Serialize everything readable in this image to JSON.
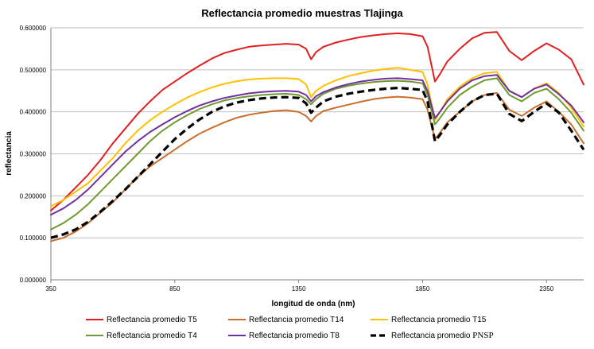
{
  "chart_data": {
    "type": "line",
    "title": "Reflectancia promedio muestras Tlajinga",
    "xlabel": "longitud de onda (nm)",
    "ylabel": "reflectancia",
    "xlim": [
      350,
      2500
    ],
    "ylim": [
      0,
      0.6
    ],
    "x_ticks": [
      350,
      850,
      1350,
      1850,
      2350
    ],
    "x_tick_labels": [
      "350",
      "850",
      "1350",
      "1850",
      "2350"
    ],
    "y_ticks": [
      0,
      0.1,
      0.2,
      0.3,
      0.4,
      0.5,
      0.6
    ],
    "y_tick_labels": [
      "0.000000",
      "0.100000",
      "0.200000",
      "0.300000",
      "0.400000",
      "0.500000",
      "0.600000"
    ],
    "grid": "horizontal",
    "legend_position": "bottom",
    "x": [
      350,
      400,
      450,
      500,
      550,
      600,
      650,
      700,
      750,
      800,
      850,
      900,
      950,
      1000,
      1050,
      1100,
      1150,
      1200,
      1250,
      1300,
      1350,
      1380,
      1400,
      1420,
      1450,
      1500,
      1550,
      1600,
      1650,
      1700,
      1750,
      1800,
      1850,
      1870,
      1900,
      1920,
      1950,
      2000,
      2050,
      2100,
      2150,
      2200,
      2250,
      2300,
      2350,
      2400,
      2450,
      2500
    ],
    "series": [
      {
        "name": "Reflectancia promedio T5",
        "color": "#e02020",
        "dash": "solid",
        "values": [
          0.165,
          0.19,
          0.22,
          0.25,
          0.285,
          0.325,
          0.36,
          0.395,
          0.425,
          0.452,
          0.472,
          0.492,
          0.51,
          0.527,
          0.54,
          0.548,
          0.555,
          0.558,
          0.56,
          0.562,
          0.56,
          0.55,
          0.525,
          0.542,
          0.555,
          0.565,
          0.572,
          0.578,
          0.582,
          0.585,
          0.587,
          0.585,
          0.58,
          0.555,
          0.472,
          0.49,
          0.52,
          0.55,
          0.575,
          0.588,
          0.59,
          0.545,
          0.523,
          0.545,
          0.563,
          0.548,
          0.525,
          0.465
        ]
      },
      {
        "name": "Reflectancia promedio T14",
        "color": "#c87030",
        "dash": "solid",
        "values": [
          0.092,
          0.1,
          0.115,
          0.135,
          0.16,
          0.185,
          0.215,
          0.245,
          0.27,
          0.29,
          0.31,
          0.33,
          0.348,
          0.362,
          0.375,
          0.386,
          0.393,
          0.398,
          0.402,
          0.404,
          0.4,
          0.39,
          0.377,
          0.39,
          0.402,
          0.41,
          0.417,
          0.424,
          0.43,
          0.434,
          0.436,
          0.434,
          0.43,
          0.405,
          0.335,
          0.35,
          0.375,
          0.4,
          0.425,
          0.44,
          0.445,
          0.405,
          0.39,
          0.41,
          0.425,
          0.4,
          0.37,
          0.325
        ]
      },
      {
        "name": "Reflectancia promedio T15",
        "color": "#ffc000",
        "dash": "solid",
        "values": [
          0.175,
          0.19,
          0.21,
          0.23,
          0.26,
          0.29,
          0.325,
          0.355,
          0.38,
          0.4,
          0.418,
          0.434,
          0.447,
          0.458,
          0.467,
          0.473,
          0.477,
          0.479,
          0.48,
          0.48,
          0.478,
          0.465,
          0.435,
          0.45,
          0.462,
          0.475,
          0.485,
          0.492,
          0.498,
          0.502,
          0.505,
          0.5,
          0.495,
          0.465,
          0.38,
          0.4,
          0.43,
          0.46,
          0.48,
          0.492,
          0.495,
          0.45,
          0.435,
          0.455,
          0.468,
          0.445,
          0.41,
          0.365
        ]
      },
      {
        "name": "Reflectancia promedio T4",
        "color": "#6e9a30",
        "dash": "solid",
        "values": [
          0.12,
          0.135,
          0.155,
          0.18,
          0.21,
          0.24,
          0.27,
          0.3,
          0.33,
          0.355,
          0.375,
          0.392,
          0.407,
          0.418,
          0.427,
          0.433,
          0.437,
          0.44,
          0.442,
          0.443,
          0.44,
          0.43,
          0.418,
          0.43,
          0.443,
          0.455,
          0.462,
          0.467,
          0.471,
          0.473,
          0.474,
          0.472,
          0.468,
          0.44,
          0.37,
          0.385,
          0.41,
          0.44,
          0.46,
          0.475,
          0.48,
          0.44,
          0.425,
          0.445,
          0.455,
          0.43,
          0.398,
          0.355
        ]
      },
      {
        "name": "Reflectancia promedio T8",
        "color": "#7030a0",
        "dash": "solid",
        "values": [
          0.155,
          0.17,
          0.19,
          0.215,
          0.245,
          0.275,
          0.305,
          0.33,
          0.352,
          0.37,
          0.387,
          0.402,
          0.415,
          0.425,
          0.433,
          0.439,
          0.444,
          0.447,
          0.449,
          0.45,
          0.448,
          0.44,
          0.425,
          0.437,
          0.447,
          0.458,
          0.466,
          0.472,
          0.476,
          0.479,
          0.48,
          0.478,
          0.475,
          0.45,
          0.385,
          0.4,
          0.425,
          0.455,
          0.475,
          0.485,
          0.488,
          0.45,
          0.435,
          0.455,
          0.465,
          0.442,
          0.415,
          0.375
        ]
      },
      {
        "name": "Reflectancia promedio PNSP",
        "color": "#000000",
        "dash": "dashed",
        "values": [
          0.1,
          0.108,
          0.12,
          0.138,
          0.162,
          0.188,
          0.215,
          0.245,
          0.275,
          0.305,
          0.335,
          0.36,
          0.382,
          0.4,
          0.413,
          0.422,
          0.428,
          0.432,
          0.434,
          0.435,
          0.433,
          0.42,
          0.398,
          0.41,
          0.425,
          0.436,
          0.443,
          0.448,
          0.452,
          0.455,
          0.457,
          0.455,
          0.452,
          0.425,
          0.33,
          0.345,
          0.37,
          0.4,
          0.425,
          0.44,
          0.443,
          0.395,
          0.378,
          0.4,
          0.42,
          0.398,
          0.355,
          0.31
        ]
      }
    ]
  }
}
